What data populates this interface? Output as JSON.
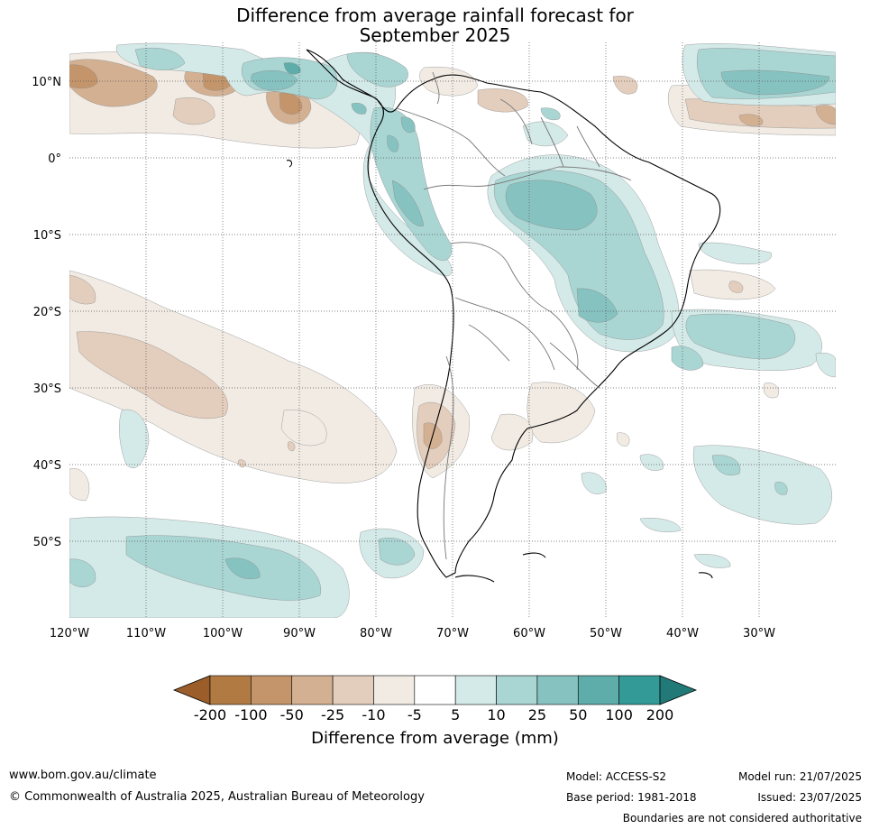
{
  "title": {
    "line1": "Difference from average rainfall forecast for",
    "line2": "September 2025"
  },
  "map": {
    "lon_labels": [
      "120°W",
      "110°W",
      "100°W",
      "90°W",
      "80°W",
      "70°W",
      "60°W",
      "50°W",
      "40°W",
      "30°W"
    ],
    "lat_labels": [
      "10°N",
      "0°",
      "10°S",
      "20°S",
      "30°S",
      "40°S",
      "50°S"
    ],
    "colors": {
      "ocean": "#ffffff",
      "land_outline": "#000000",
      "borders": "#777777",
      "gridline": "#555555"
    }
  },
  "colorbar": {
    "title": "Difference from average (mm)",
    "labels": [
      "-200",
      "-100",
      "-50",
      "-25",
      "-10",
      "-5",
      "5",
      "10",
      "25",
      "50",
      "100",
      "200"
    ],
    "colors": [
      "#9b5e2a",
      "#b07a42",
      "#c4956a",
      "#d3b092",
      "#e3cdbc",
      "#f1ebe4",
      "#ffffff",
      "#d4eae8",
      "#a9d5d3",
      "#86c2c0",
      "#5eadaa",
      "#339a97",
      "#217a77"
    ]
  },
  "footer": {
    "website": "www.bom.gov.au/climate",
    "copyright": "© Commonwealth of Australia 2025, Australian Bureau of Meteorology",
    "model": "Model: ACCESS-S2",
    "base_period": "Base period: 1981-2018",
    "model_run": "Model run: 21/07/2025",
    "issued": "Issued: 23/07/2025",
    "disclaimer": "Boundaries are not considered authoritative"
  }
}
